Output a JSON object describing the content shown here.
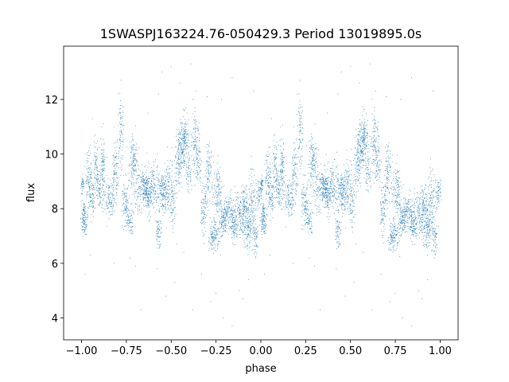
{
  "chart_data": {
    "type": "scatter",
    "title": "1SWASPJ163224.76-050429.3 Period 13019895.0s",
    "xlabel": "phase",
    "ylabel": "flux",
    "xlim": [
      -1.1,
      1.1
    ],
    "ylim": [
      3.2,
      13.95
    ],
    "x_ticks": [
      -1.0,
      -0.75,
      -0.5,
      -0.25,
      0.0,
      0.25,
      0.5,
      0.75,
      1.0
    ],
    "x_tick_labels": [
      "−1.00",
      "−0.75",
      "−0.50",
      "−0.25",
      "0.00",
      "0.25",
      "0.50",
      "0.75",
      "1.00"
    ],
    "y_ticks": [
      4,
      6,
      8,
      10,
      12
    ],
    "y_tick_labels": [
      "4",
      "6",
      "8",
      "10",
      "12"
    ],
    "grid": false,
    "marker_color": "#1f77b4",
    "series": [
      {
        "clusters": [
          [
            0.005,
            8.9,
            0.005,
            0.15,
            40
          ],
          [
            0.015,
            7.6,
            0.008,
            0.3,
            120
          ],
          [
            0.04,
            9.0,
            0.01,
            0.5,
            100
          ],
          [
            0.06,
            8.4,
            0.008,
            0.35,
            60
          ],
          [
            0.08,
            9.6,
            0.006,
            0.5,
            70
          ],
          [
            0.1,
            8.6,
            0.01,
            0.3,
            60
          ],
          [
            0.12,
            9.3,
            0.01,
            0.6,
            120
          ],
          [
            0.16,
            8.3,
            0.012,
            0.4,
            100
          ],
          [
            0.19,
            9.3,
            0.01,
            0.6,
            90
          ],
          [
            0.22,
            10.8,
            0.008,
            0.7,
            80
          ],
          [
            0.245,
            8.2,
            0.01,
            0.5,
            90
          ],
          [
            0.27,
            7.6,
            0.01,
            0.3,
            70
          ],
          [
            0.29,
            9.6,
            0.012,
            0.5,
            140
          ],
          [
            0.32,
            8.6,
            0.01,
            0.4,
            60
          ],
          [
            0.35,
            8.9,
            0.012,
            0.3,
            110
          ],
          [
            0.37,
            8.5,
            0.015,
            0.3,
            100
          ],
          [
            0.4,
            8.8,
            0.02,
            0.5,
            160
          ],
          [
            0.43,
            7.1,
            0.008,
            0.25,
            60
          ],
          [
            0.45,
            8.6,
            0.012,
            0.4,
            120
          ],
          [
            0.48,
            8.9,
            0.015,
            0.6,
            130
          ],
          [
            0.51,
            8.2,
            0.008,
            0.4,
            60
          ],
          [
            0.54,
            9.6,
            0.01,
            0.6,
            100
          ],
          [
            0.56,
            10.3,
            0.012,
            0.5,
            130
          ],
          [
            0.58,
            10.6,
            0.01,
            0.5,
            100
          ],
          [
            0.6,
            9.5,
            0.008,
            0.4,
            60
          ],
          [
            0.63,
            10.6,
            0.01,
            0.5,
            80
          ],
          [
            0.65,
            9.8,
            0.01,
            0.5,
            80
          ],
          [
            0.68,
            8.0,
            0.01,
            0.5,
            80
          ],
          [
            0.71,
            9.3,
            0.012,
            0.6,
            110
          ],
          [
            0.74,
            7.0,
            0.015,
            0.25,
            130
          ],
          [
            0.76,
            8.6,
            0.012,
            0.5,
            120
          ],
          [
            0.79,
            7.6,
            0.012,
            0.3,
            100
          ],
          [
            0.82,
            7.9,
            0.015,
            0.35,
            140
          ],
          [
            0.85,
            7.4,
            0.01,
            0.3,
            80
          ],
          [
            0.88,
            7.8,
            0.015,
            0.4,
            120
          ],
          [
            0.91,
            8.0,
            0.01,
            0.5,
            110
          ],
          [
            0.93,
            7.3,
            0.01,
            0.4,
            110
          ],
          [
            0.95,
            8.3,
            0.01,
            0.6,
            100
          ],
          [
            0.97,
            7.0,
            0.008,
            0.3,
            60
          ],
          [
            0.99,
            8.6,
            0.008,
            0.25,
            60
          ]
        ],
        "outliers": [
          [
            0.06,
            11.3
          ],
          [
            0.11,
            11.0
          ],
          [
            0.22,
            12.7
          ],
          [
            0.37,
            11.5
          ],
          [
            0.43,
            12.2
          ],
          [
            0.45,
            13.0
          ],
          [
            0.5,
            13.2
          ],
          [
            0.55,
            12.6
          ],
          [
            0.61,
            13.3
          ],
          [
            0.64,
            12.3
          ],
          [
            0.7,
            12.1
          ],
          [
            0.78,
            12.0
          ],
          [
            0.84,
            12.8
          ],
          [
            0.96,
            12.3
          ],
          [
            0.02,
            5.6
          ],
          [
            0.05,
            6.3
          ],
          [
            0.18,
            6.0
          ],
          [
            0.3,
            5.9
          ],
          [
            0.42,
            5.8
          ],
          [
            0.52,
            5.3
          ],
          [
            0.57,
            6.4
          ],
          [
            0.67,
            5.6
          ],
          [
            0.72,
            4.6
          ],
          [
            0.79,
            4.0
          ],
          [
            0.84,
            3.7
          ],
          [
            0.9,
            4.7
          ],
          [
            0.93,
            5.4
          ],
          [
            0.97,
            6.2
          ],
          [
            0.33,
            4.3
          ],
          [
            0.47,
            4.8
          ],
          [
            0.62,
            4.3
          ],
          [
            0.75,
            4.9
          ],
          [
            0.88,
            5.0
          ],
          [
            0.27,
            6.2
          ],
          [
            0.53,
            6.7
          ]
        ],
        "mirror_period": 1.0
      }
    ]
  }
}
